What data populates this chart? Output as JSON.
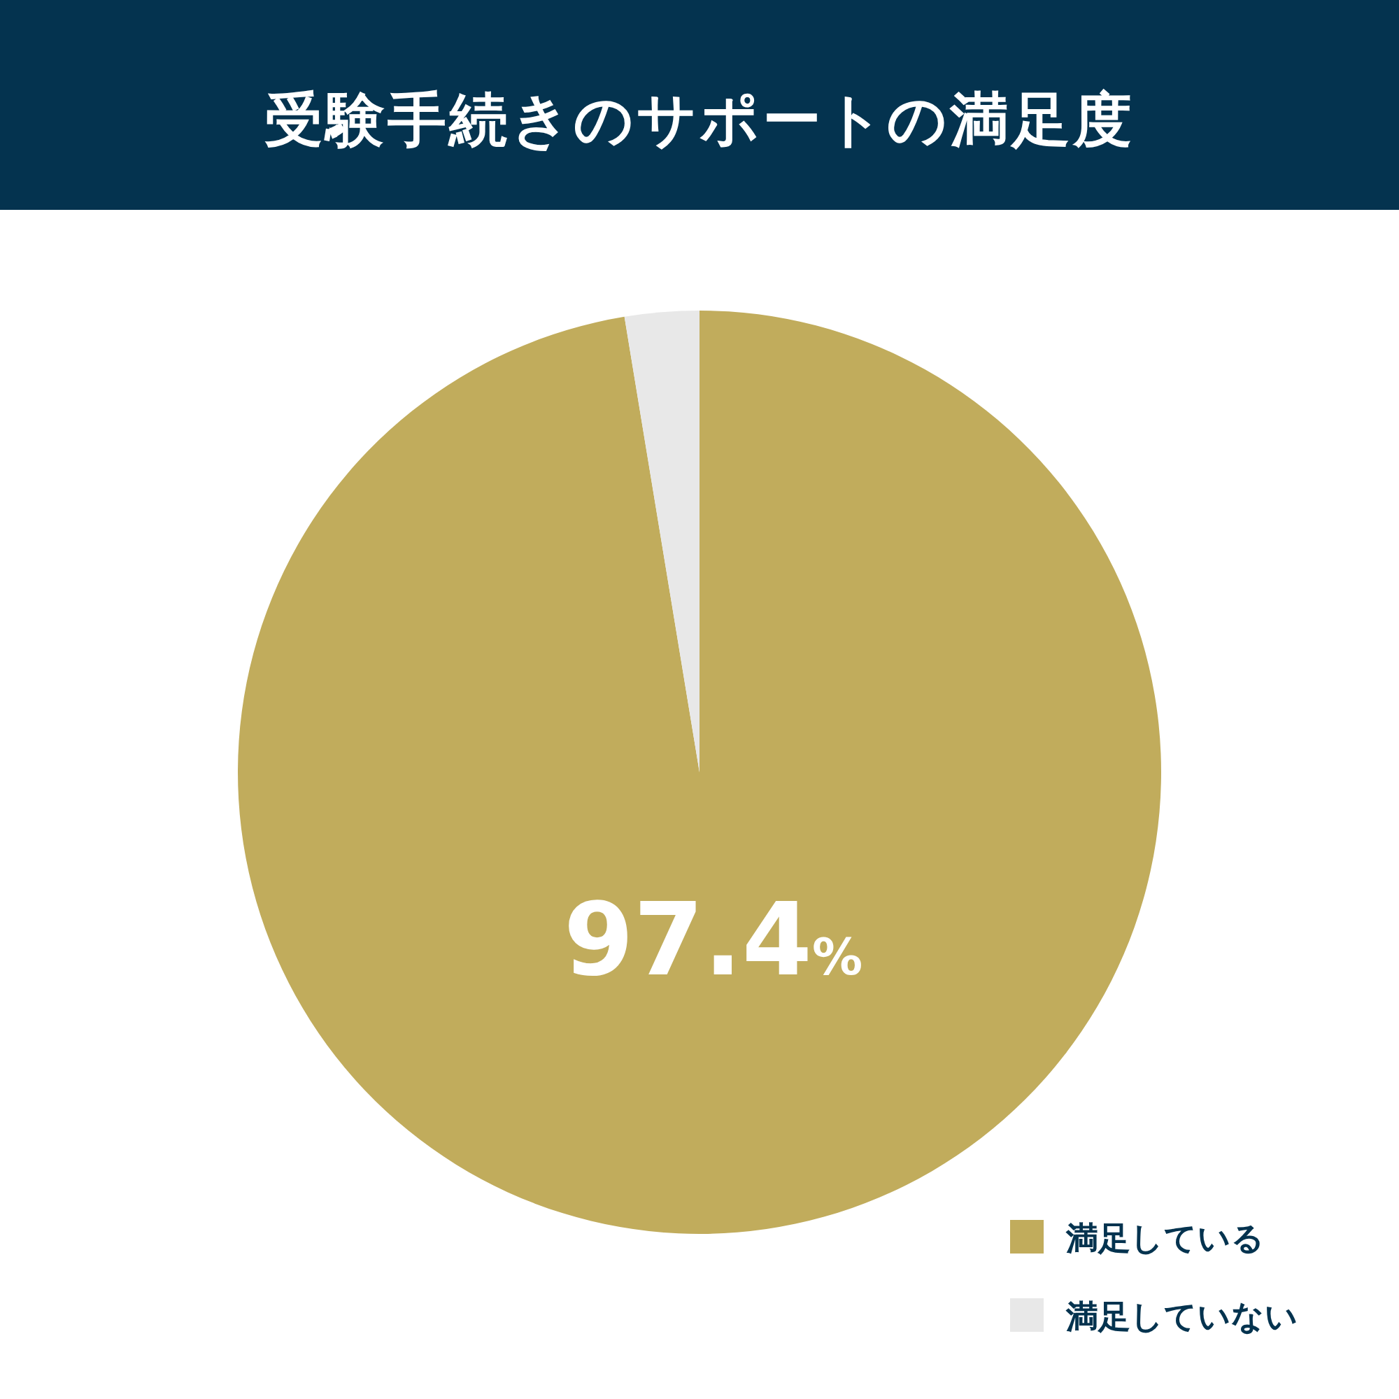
{
  "chart_data": {
    "type": "pie",
    "title": "受験手続きのサポートの満足度",
    "categories": [
      "満足している",
      "満足していない"
    ],
    "values": [
      97.4,
      2.6
    ],
    "colors": [
      "#c1ac5c",
      "#e8e8e8"
    ],
    "value_labels": [
      "97.4%",
      null
    ],
    "legend": "bottom right"
  }
}
